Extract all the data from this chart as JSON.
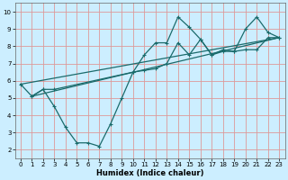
{
  "title": "",
  "xlabel": "Humidex (Indice chaleur)",
  "xlim": [
    -0.5,
    23.5
  ],
  "ylim": [
    1.5,
    10.5
  ],
  "xticks": [
    0,
    1,
    2,
    3,
    4,
    5,
    6,
    7,
    8,
    9,
    10,
    11,
    12,
    13,
    14,
    15,
    16,
    17,
    18,
    19,
    20,
    21,
    22,
    23
  ],
  "yticks": [
    2,
    3,
    4,
    5,
    6,
    7,
    8,
    9,
    10
  ],
  "bg_color": "#cceeff",
  "grid_color": "#dd9999",
  "line_color": "#1a6b6b",
  "line1_x": [
    0,
    1,
    2,
    3,
    4,
    5,
    6,
    7,
    8,
    9,
    10,
    11,
    12,
    13,
    14,
    15,
    16,
    17,
    18,
    19,
    20,
    21,
    22,
    23
  ],
  "line1_y": [
    5.8,
    5.1,
    5.5,
    4.5,
    3.3,
    2.4,
    2.4,
    2.2,
    3.5,
    5.0,
    6.5,
    7.5,
    8.2,
    8.2,
    9.7,
    9.1,
    8.4,
    7.5,
    7.8,
    7.7,
    9.0,
    9.7,
    8.8,
    8.5
  ],
  "line2_x": [
    1,
    2,
    3,
    10,
    11,
    12,
    13,
    14,
    15,
    16,
    17,
    18,
    19,
    20,
    21,
    22,
    23
  ],
  "line2_y": [
    5.1,
    5.5,
    5.5,
    6.5,
    6.6,
    6.7,
    7.0,
    8.2,
    7.5,
    8.4,
    7.5,
    7.7,
    7.7,
    7.8,
    7.8,
    8.5,
    8.5
  ],
  "line3_x": [
    0,
    23
  ],
  "line3_y": [
    5.8,
    8.5
  ],
  "line4_x": [
    1,
    23
  ],
  "line4_y": [
    5.1,
    8.5
  ],
  "tick_fontsize": 5,
  "xlabel_fontsize": 6,
  "lw": 0.9
}
